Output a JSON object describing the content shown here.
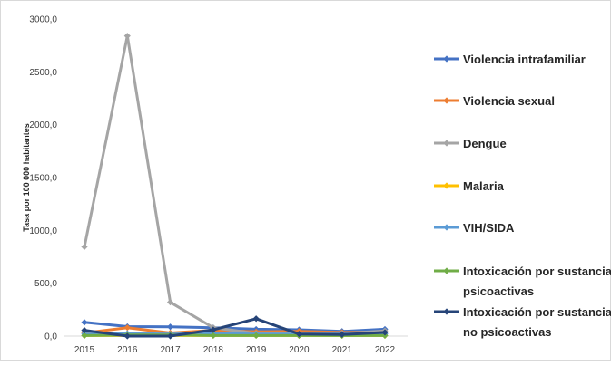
{
  "chart_data": {
    "type": "line",
    "title": "",
    "xlabel": "",
    "ylabel": "Tasa por 100 000 habitantes",
    "ylim": [
      0,
      3000
    ],
    "yticks": [
      "0,0",
      "500,0",
      "1000,0",
      "1500,0",
      "2000,0",
      "2500,0",
      "3000,0"
    ],
    "ytick_values": [
      0,
      500,
      1000,
      1500,
      2000,
      2500,
      3000
    ],
    "categories": [
      "2015",
      "2016",
      "2017",
      "2018",
      "2019",
      "2020",
      "2021",
      "2022"
    ],
    "grid": false,
    "legend_position": "right",
    "series": [
      {
        "name": "Violencia intrafamiliar",
        "color": "#4472c4",
        "values": [
          130,
          90,
          88,
          80,
          65,
          60,
          45,
          65
        ]
      },
      {
        "name": "Violencia sexual",
        "color": "#ed7d31",
        "values": [
          30,
          80,
          30,
          55,
          40,
          45,
          35,
          40
        ]
      },
      {
        "name": "Dengue",
        "color": "#a5a5a5",
        "values": [
          845,
          2840,
          320,
          80,
          25,
          20,
          25,
          50
        ]
      },
      {
        "name": "Malaria",
        "color": "#ffc000",
        "values": [
          5,
          5,
          5,
          5,
          5,
          5,
          5,
          5
        ]
      },
      {
        "name": "VIH/SIDA",
        "color": "#5b9bd5",
        "values": [
          20,
          25,
          20,
          25,
          20,
          20,
          20,
          20
        ]
      },
      {
        "name": "Intoxicación por sustancias psicoactivas",
        "label_lines": [
          "Intoxicación por sustancias",
          "psicoactivas"
        ],
        "color": "#70ad47",
        "values": [
          5,
          10,
          10,
          5,
          5,
          5,
          5,
          5
        ]
      },
      {
        "name": "Intoxicación por sustancias no psicoactivas",
        "label_lines": [
          "Intoxicación por sustancias",
          "no psicoactivas"
        ],
        "color": "#264478",
        "values": [
          55,
          0,
          0,
          60,
          165,
          20,
          15,
          35
        ]
      }
    ]
  }
}
